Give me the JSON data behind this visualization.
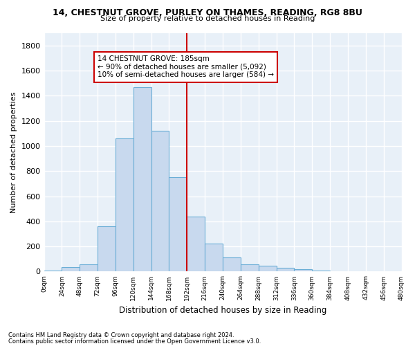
{
  "title_line1": "14, CHESTNUT GROVE, PURLEY ON THAMES, READING, RG8 8BU",
  "title_line2": "Size of property relative to detached houses in Reading",
  "xlabel": "Distribution of detached houses by size in Reading",
  "ylabel": "Number of detached properties",
  "footnote1": "Contains HM Land Registry data © Crown copyright and database right 2024.",
  "footnote2": "Contains public sector information licensed under the Open Government Licence v3.0.",
  "annotation_line1": "14 CHESTNUT GROVE: 185sqm",
  "annotation_line2": "← 90% of detached houses are smaller (5,092)",
  "annotation_line3": "10% of semi-detached houses are larger (584) →",
  "bin_edges": [
    0,
    24,
    48,
    72,
    96,
    120,
    144,
    168,
    192,
    216,
    240,
    264,
    288,
    312,
    336,
    360,
    384,
    408,
    432,
    456,
    480
  ],
  "bar_heights": [
    10,
    35,
    55,
    360,
    1060,
    1470,
    1120,
    750,
    435,
    220,
    110,
    55,
    45,
    30,
    20,
    8,
    3,
    2,
    1,
    0
  ],
  "bar_color": "#c8d9ee",
  "bar_edge_color": "#6baed6",
  "vline_color": "#cc0000",
  "vline_x": 192,
  "annotation_box_color": "#cc0000",
  "grid_color": "#c8d8e8",
  "bg_color": "#e8f0f8",
  "ylim": [
    0,
    1900
  ],
  "yticks": [
    0,
    200,
    400,
    600,
    800,
    1000,
    1200,
    1400,
    1600,
    1800
  ],
  "tick_labels": [
    "0sqm",
    "24sqm",
    "48sqm",
    "72sqm",
    "96sqm",
    "120sqm",
    "144sqm",
    "168sqm",
    "192sqm",
    "216sqm",
    "240sqm",
    "264sqm",
    "288sqm",
    "312sqm",
    "336sqm",
    "360sqm",
    "384sqm",
    "408sqm",
    "432sqm",
    "456sqm",
    "480sqm"
  ]
}
